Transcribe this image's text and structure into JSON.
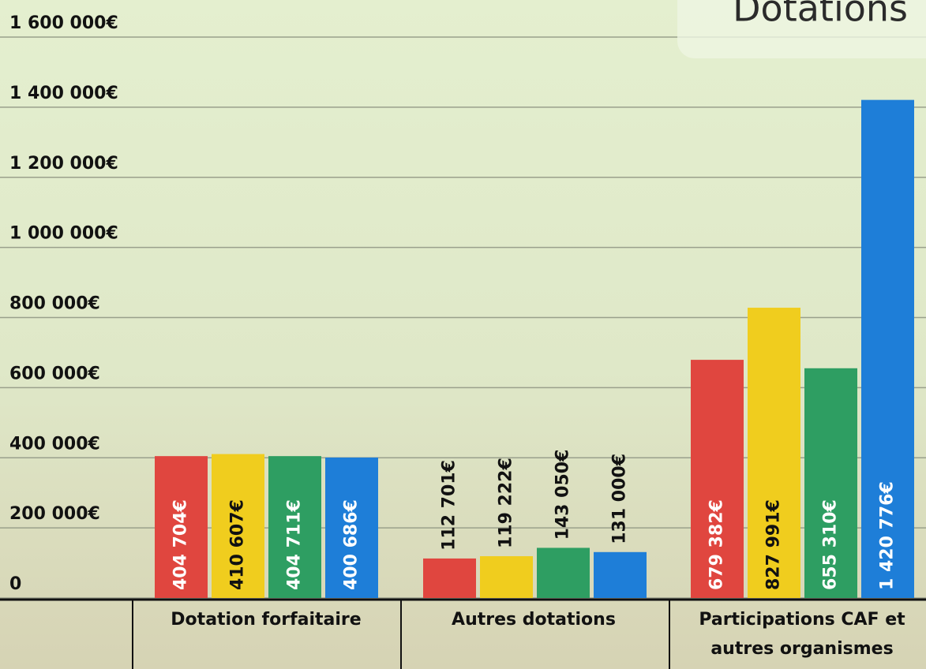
{
  "chart_data": {
    "type": "bar",
    "title": "Dotations",
    "categories": [
      "Dotation forfaitaire",
      "Autres dotations",
      "Participations CAF et autres organismes"
    ],
    "series": [
      {
        "color": "#e0463f",
        "label_color": "#ffffff",
        "values": [
          404704,
          112701,
          679382
        ],
        "value_labels": [
          "404 704€",
          "112 701€",
          "679 382€"
        ]
      },
      {
        "color": "#f0cd1e",
        "label_color": "#111111",
        "values": [
          410607,
          119222,
          827991
        ],
        "value_labels": [
          "410 607€",
          "119 222€",
          "827 991€"
        ]
      },
      {
        "color": "#2e9e62",
        "label_color": "#ffffff",
        "values": [
          404711,
          143050,
          655310
        ],
        "value_labels": [
          "404 711€",
          "143 050€",
          "655 310€"
        ]
      },
      {
        "color": "#1e7ed8",
        "label_color": "#ffffff",
        "values": [
          400686,
          131000,
          1420776
        ],
        "value_labels": [
          "400 686€",
          "131 000€",
          "1 420 776€"
        ]
      }
    ],
    "ylim": [
      0,
      1600000
    ],
    "yticks": [
      0,
      {
        "value": 200000,
        "label": "200 000€"
      },
      {
        "value": 400000,
        "label": "400 000€"
      },
      {
        "value": 600000,
        "label": "600 000€"
      },
      {
        "value": 800000,
        "label": "800 000€"
      },
      {
        "value": 1000000,
        "label": "1 000 000€"
      },
      {
        "value": 1200000,
        "label": "1 200 000€"
      },
      {
        "value": 1400000,
        "label": "1 400 000€"
      },
      {
        "value": 1600000,
        "label": "1 600 000€"
      }
    ],
    "grid": true
  }
}
